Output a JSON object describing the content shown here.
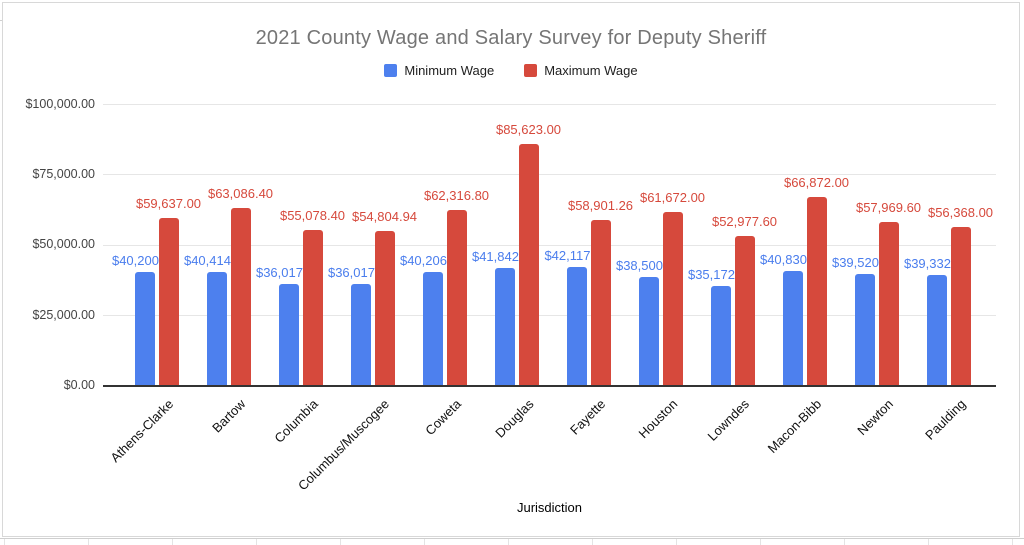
{
  "chart_data": {
    "type": "bar",
    "title": "2021 County Wage and Salary Survey for Deputy Sheriff",
    "xlabel": "Jurisdiction",
    "ylabel": "",
    "ylim": [
      0,
      100000
    ],
    "grid": true,
    "legend_position": "top",
    "yticks": [
      {
        "value": 0,
        "label": "$0.00"
      },
      {
        "value": 25000,
        "label": "$25,000.00"
      },
      {
        "value": 50000,
        "label": "$50,000.00"
      },
      {
        "value": 75000,
        "label": "$75,000.00"
      },
      {
        "value": 100000,
        "label": "$100,000.00"
      }
    ],
    "categories": [
      "Athens-Clarke",
      "Bartow",
      "Columbia",
      "Columbus/Muscogee",
      "Coweta",
      "Douglas",
      "Fayette",
      "Houston",
      "Lowndes",
      "Macon-Bibb",
      "Newton",
      "Paulding"
    ],
    "series": [
      {
        "name": "Minimum Wage",
        "color": "#4d80ee",
        "label_color": "#4a7ded",
        "values": [
          40200.0,
          40414.4,
          36017.54,
          36017.54,
          40206.4,
          41842.0,
          42117.13,
          38500.8,
          35172.8,
          40830.4,
          39520.0,
          39332.8
        ],
        "labels": [
          "$40,200.00",
          "$40,414.40",
          "$36,017.54",
          "$36,017.54",
          "$40,206.40",
          "$41,842.00",
          "$42,117.13",
          "$38,500.80",
          "$35,172.80",
          "$40,830.40",
          "$39,520.00",
          "$39,332.80"
        ]
      },
      {
        "name": "Maximum Wage",
        "color": "#d6493c",
        "label_color": "#d6493c",
        "values": [
          59637.0,
          63086.4,
          55078.4,
          54804.94,
          62316.8,
          85623.0,
          58901.26,
          61672.0,
          52977.6,
          66872.0,
          57969.6,
          56368.0
        ],
        "labels": [
          "$59,637.00",
          "$63,086.40",
          "$55,078.40",
          "$54,804.94",
          "$62,316.80",
          "$85,623.00",
          "$58,901.26",
          "$61,672.00",
          "$52,977.60",
          "$66,872.00",
          "$57,969.60",
          "$56,368.00"
        ]
      }
    ]
  }
}
